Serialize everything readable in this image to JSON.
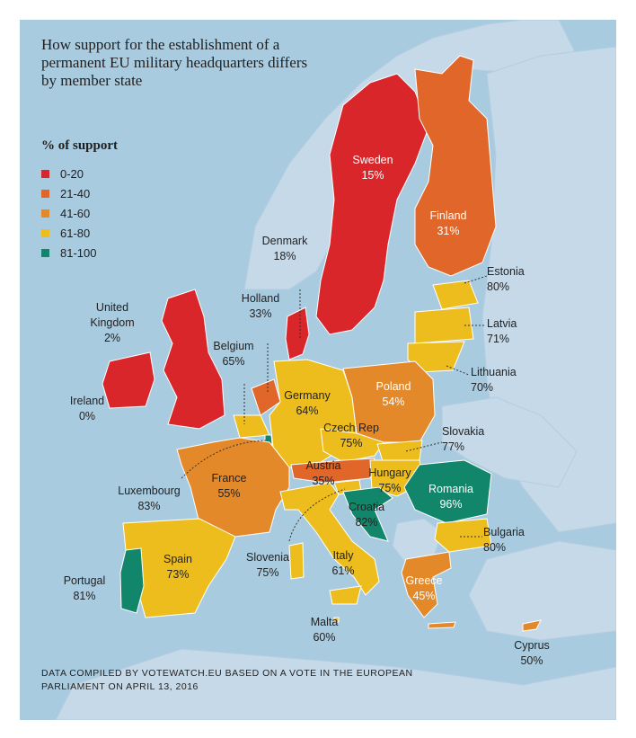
{
  "title": "How support for the establishment of a permanent EU military headquarters differs by member state",
  "legend": {
    "title": "% of support",
    "items": [
      {
        "range": "0-20",
        "color": "#d9262a"
      },
      {
        "range": "21-40",
        "color": "#e0662a"
      },
      {
        "range": "41-60",
        "color": "#e4892a"
      },
      {
        "range": "61-80",
        "color": "#ecbd1c"
      },
      {
        "range": "81-100",
        "color": "#12866a"
      }
    ]
  },
  "countries": {
    "sweden": {
      "name": "Sweden",
      "value": "15%"
    },
    "finland": {
      "name": "Finland",
      "value": "31%"
    },
    "denmark": {
      "name": "Denmark",
      "value": "18%"
    },
    "estonia": {
      "name": "Estonia",
      "value": "80%"
    },
    "latvia": {
      "name": "Latvia",
      "value": "71%"
    },
    "lithuania": {
      "name": "Lithuania",
      "value": "70%"
    },
    "united_kingdom": {
      "name1": "United",
      "name2": "Kingdom",
      "value": "2%"
    },
    "holland": {
      "name": "Holland",
      "value": "33%"
    },
    "belgium": {
      "name": "Belgium",
      "value": "65%"
    },
    "ireland": {
      "name": "Ireland",
      "value": "0%"
    },
    "germany": {
      "name": "Germany",
      "value": "64%"
    },
    "poland": {
      "name": "Poland",
      "value": "54%"
    },
    "czech_rep": {
      "name": "Czech Rep",
      "value": "75%"
    },
    "slovakia": {
      "name": "Slovakia",
      "value": "77%"
    },
    "austria": {
      "name": "Austria",
      "value": "35%"
    },
    "hungary": {
      "name": "Hungary",
      "value": "75%"
    },
    "romania": {
      "name": "Romania",
      "value": "96%"
    },
    "france": {
      "name": "France",
      "value": "55%"
    },
    "luxembourg": {
      "name": "Luxembourg",
      "value": "83%"
    },
    "croatia": {
      "name": "Croatia",
      "value": "82%"
    },
    "bulgaria": {
      "name": "Bulgaria",
      "value": "80%"
    },
    "spain": {
      "name": "Spain",
      "value": "73%"
    },
    "slovenia": {
      "name": "Slovenia",
      "value": "75%"
    },
    "italy": {
      "name": "Italy",
      "value": "61%"
    },
    "portugal": {
      "name": "Portugal",
      "value": "81%"
    },
    "greece": {
      "name": "Greece",
      "value": "45%"
    },
    "malta": {
      "name": "Malta",
      "value": "60%"
    },
    "cyprus": {
      "name": "Cyprus",
      "value": "50%"
    }
  },
  "colors": {
    "sea": "#a9cbe0",
    "land_non_eu": "#c6d9e8"
  },
  "source": "DATA COMPILED BY VOTEWATCH.EU BASED ON A VOTE IN THE EUROPEAN PARLIAMENT ON APRIL 13, 2016"
}
